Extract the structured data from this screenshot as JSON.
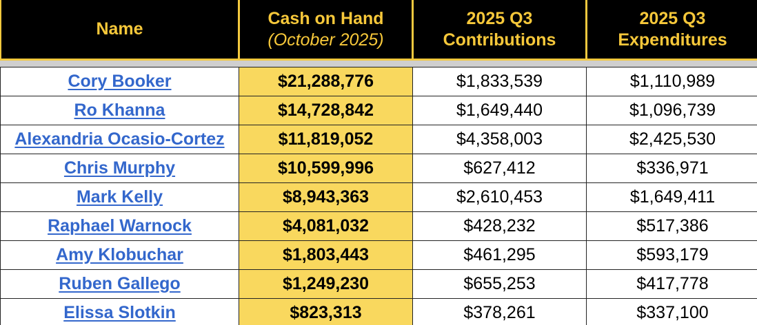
{
  "colors": {
    "header_bg": "#000000",
    "header_text": "#f7c83a",
    "highlight": "#f9d85e",
    "link": "#3367cc"
  },
  "headers": {
    "name": "Name",
    "cash_line1": "Cash on Hand",
    "cash_line2": "(October 2025)",
    "contrib_line1": "2025 Q3",
    "contrib_line2": "Contributions",
    "expend_line1": "2025 Q3",
    "expend_line2": "Expenditures"
  },
  "rows": [
    {
      "name": "Cory Booker",
      "cash": "$21,288,776",
      "contributions": "$1,833,539",
      "expenditures": "$1,110,989"
    },
    {
      "name": "Ro Khanna",
      "cash": "$14,728,842",
      "contributions": "$1,649,440",
      "expenditures": "$1,096,739"
    },
    {
      "name": "Alexandria Ocasio-Cortez",
      "cash": "$11,819,052",
      "contributions": "$4,358,003",
      "expenditures": "$2,425,530"
    },
    {
      "name": "Chris Murphy",
      "cash": "$10,599,996",
      "contributions": "$627,412",
      "expenditures": "$336,971"
    },
    {
      "name": "Mark Kelly",
      "cash": "$8,943,363",
      "contributions": "$2,610,453",
      "expenditures": "$1,649,411"
    },
    {
      "name": "Raphael Warnock",
      "cash": "$4,081,032",
      "contributions": "$428,232",
      "expenditures": "$517,386"
    },
    {
      "name": "Amy Klobuchar",
      "cash": "$1,803,443",
      "contributions": "$461,295",
      "expenditures": "$593,179"
    },
    {
      "name": "Ruben Gallego",
      "cash": "$1,249,230",
      "contributions": "$655,253",
      "expenditures": "$417,778"
    },
    {
      "name": "Elissa Slotkin",
      "cash": "$823,313",
      "contributions": "$378,261",
      "expenditures": "$337,100"
    }
  ]
}
